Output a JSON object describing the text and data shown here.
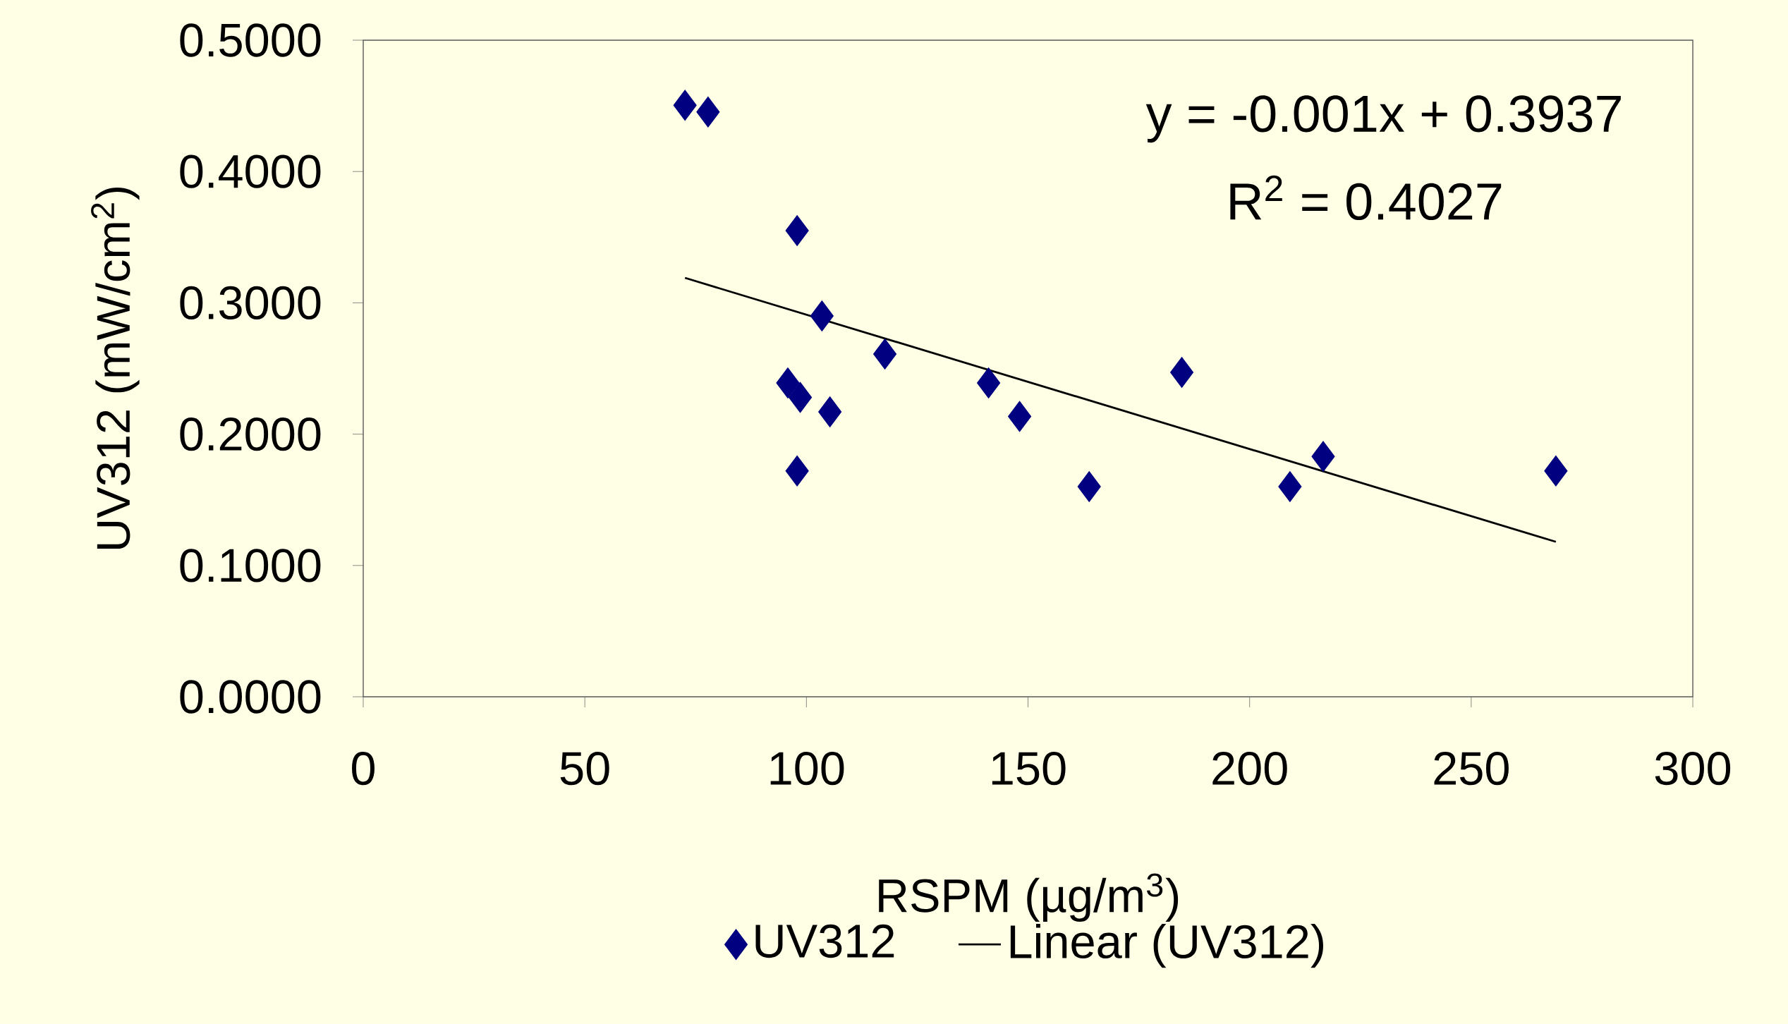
{
  "chart_data": {
    "type": "scatter",
    "xlabel": "RSPM (µg/m$^{3}$)",
    "ylabel": "UV312 (mW/cm$^{2}$)",
    "annotations": [
      "y = -0.001x + 0.3937",
      "R$^{2}$ = 0.4027"
    ],
    "series": [
      {
        "name": "UV312",
        "color": "#000080",
        "marker": "diamond",
        "x": [
          72.6,
          77.8,
          97.9,
          103.5,
          117.7,
          95.8,
          98.6,
          105.3,
          97.9,
          141.1,
          148.1,
          163.8,
          184.7,
          209.1,
          216.6,
          269.1
        ],
        "values": [
          0.4505,
          0.4453,
          0.355,
          0.29,
          0.261,
          0.239,
          0.228,
          0.217,
          0.172,
          0.239,
          0.2135,
          0.16,
          0.247,
          0.16,
          0.183,
          0.172
        ]
      },
      {
        "name": "Linear (UV312)",
        "type": "line",
        "color": "#000000",
        "marker": "none",
        "line_style": "solid",
        "x": [
          72.6,
          269.1
        ],
        "values": [
          0.319,
          0.118
        ]
      }
    ],
    "xlim": [
      0,
      300
    ],
    "xticks": [
      0,
      50,
      100,
      150,
      200,
      250,
      300
    ],
    "ylim": [
      0,
      0.5
    ],
    "yticks": [
      {
        "value": 0,
        "label": "0.0000"
      },
      {
        "value": 0.1,
        "label": "0.1000"
      },
      {
        "value": 0.2,
        "label": "0.2000"
      },
      {
        "value": 0.3,
        "label": "0.3000"
      },
      {
        "value": 0.4,
        "label": "0.4000"
      },
      {
        "value": 0.5,
        "label": "0.5000"
      }
    ],
    "grid": false,
    "legend": "bottom"
  }
}
